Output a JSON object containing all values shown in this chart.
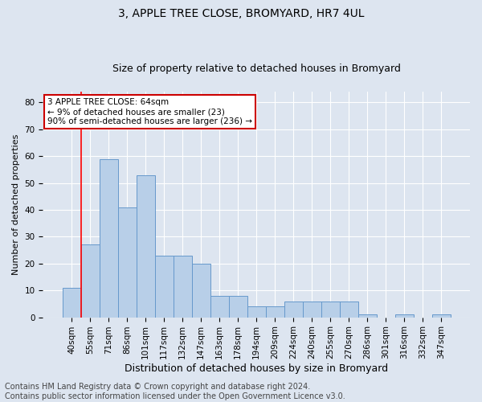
{
  "title": "3, APPLE TREE CLOSE, BROMYARD, HR7 4UL",
  "subtitle": "Size of property relative to detached houses in Bromyard",
  "xlabel": "Distribution of detached houses by size in Bromyard",
  "ylabel": "Number of detached properties",
  "categories": [
    "40sqm",
    "55sqm",
    "71sqm",
    "86sqm",
    "101sqm",
    "117sqm",
    "132sqm",
    "147sqm",
    "163sqm",
    "178sqm",
    "194sqm",
    "209sqm",
    "224sqm",
    "240sqm",
    "255sqm",
    "270sqm",
    "286sqm",
    "301sqm",
    "316sqm",
    "332sqm",
    "347sqm"
  ],
  "values": [
    11,
    27,
    59,
    41,
    53,
    23,
    23,
    20,
    8,
    8,
    4,
    4,
    6,
    6,
    6,
    6,
    1,
    0,
    1,
    0,
    1
  ],
  "bar_color": "#b8cfe8",
  "bar_edge_color": "#6699cc",
  "bar_linewidth": 0.7,
  "red_line_index": 1,
  "annotation_title": "3 APPLE TREE CLOSE: 64sqm",
  "annotation_line1": "← 9% of detached houses are smaller (23)",
  "annotation_line2": "90% of semi-detached houses are larger (236) →",
  "annotation_box_facecolor": "#ffffff",
  "annotation_box_edgecolor": "#cc0000",
  "ylim": [
    0,
    84
  ],
  "yticks": [
    0,
    10,
    20,
    30,
    40,
    50,
    60,
    70,
    80
  ],
  "footer_line1": "Contains HM Land Registry data © Crown copyright and database right 2024.",
  "footer_line2": "Contains public sector information licensed under the Open Government Licence v3.0.",
  "background_color": "#dde5f0",
  "plot_bg_color": "#dde5f0",
  "grid_color": "#ffffff",
  "title_fontsize": 10,
  "subtitle_fontsize": 9,
  "axis_label_fontsize": 8,
  "tick_fontsize": 7.5,
  "annot_fontsize": 7.5,
  "footer_fontsize": 7
}
